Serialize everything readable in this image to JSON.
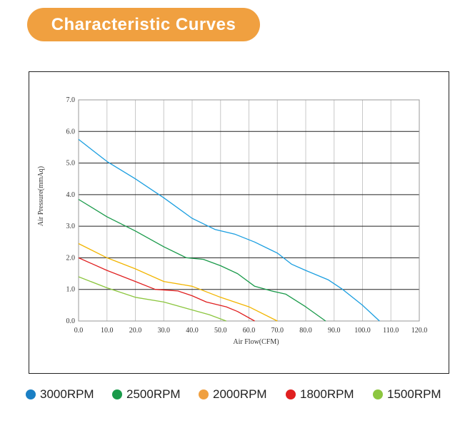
{
  "header": {
    "title": "Characteristic Curves"
  },
  "chart_data": {
    "type": "line",
    "title": "Characteristic Curves",
    "xlabel": "Air Flow(CFM)",
    "ylabel": "Air Pressure(mmAq)",
    "xlim": [
      0,
      120
    ],
    "ylim": [
      0,
      7
    ],
    "x_ticks": [
      "0.0",
      "10.0",
      "20.0",
      "30.0",
      "40.0",
      "50.0",
      "60.0",
      "70.0",
      "80.0",
      "90.0",
      "100.0",
      "110.0",
      "120.0"
    ],
    "y_ticks": [
      "0.0",
      "1.0",
      "2.0",
      "3.0",
      "4.0",
      "5.0",
      "6.0",
      "7.0"
    ],
    "x_tick_values": [
      0,
      10,
      20,
      30,
      40,
      50,
      60,
      70,
      80,
      90,
      100,
      110,
      120
    ],
    "y_tick_values": [
      0,
      1,
      2,
      3,
      4,
      5,
      6,
      7
    ],
    "grid": true,
    "legend_position": "bottom",
    "series": [
      {
        "name": "3000RPM",
        "color": "#1a9ee0",
        "x": [
          0,
          10,
          20,
          30,
          40,
          48,
          55,
          62,
          70,
          75,
          80,
          88,
          93,
          100,
          106
        ],
        "y": [
          5.75,
          5.05,
          4.5,
          3.9,
          3.25,
          2.9,
          2.75,
          2.5,
          2.15,
          1.8,
          1.6,
          1.3,
          1.0,
          0.5,
          0.0
        ]
      },
      {
        "name": "2500RPM",
        "color": "#1a9a4a",
        "x": [
          0,
          10,
          20,
          30,
          38,
          44,
          50,
          56,
          62,
          68,
          73,
          80,
          87
        ],
        "y": [
          3.85,
          3.3,
          2.85,
          2.35,
          2.0,
          1.95,
          1.75,
          1.5,
          1.1,
          0.95,
          0.85,
          0.45,
          0.0
        ]
      },
      {
        "name": "2000RPM",
        "color": "#f2b500",
        "x": [
          0,
          10,
          20,
          30,
          40,
          50,
          60,
          70
        ],
        "y": [
          2.45,
          2.0,
          1.65,
          1.25,
          1.1,
          0.75,
          0.45,
          0.0
        ]
      },
      {
        "name": "1800RPM",
        "color": "#e02020",
        "x": [
          0,
          10,
          20,
          27,
          35,
          40,
          45,
          52,
          56,
          62
        ],
        "y": [
          2.0,
          1.6,
          1.25,
          1.0,
          0.95,
          0.8,
          0.6,
          0.45,
          0.3,
          0.0
        ]
      },
      {
        "name": "1500RPM",
        "color": "#8cc63f",
        "x": [
          0,
          10,
          20,
          30,
          40,
          46,
          52
        ],
        "y": [
          1.4,
          1.05,
          0.75,
          0.6,
          0.35,
          0.2,
          0.0
        ]
      }
    ]
  },
  "legend": {
    "items": [
      {
        "label": "3000RPM",
        "color": "#1a7fc4"
      },
      {
        "label": "2500RPM",
        "color": "#1a9a4a"
      },
      {
        "label": "2000RPM",
        "color": "#f0a040"
      },
      {
        "label": "1800RPM",
        "color": "#e02020"
      },
      {
        "label": "1500RPM",
        "color": "#8cc63f"
      }
    ]
  }
}
